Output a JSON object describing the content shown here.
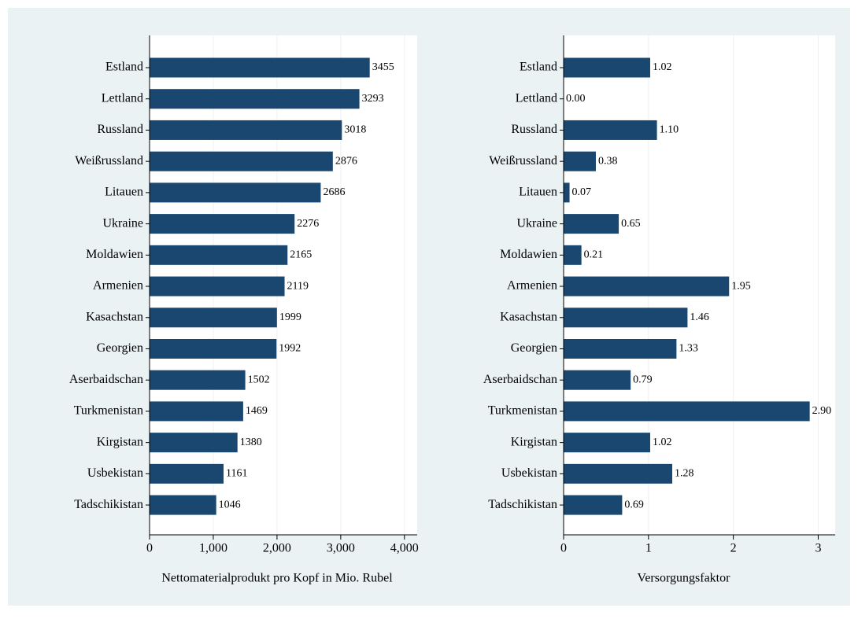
{
  "chart_data": [
    {
      "type": "hbar",
      "xlabel": "Nettomaterialprodukt pro Kopf in Mio. Rubel",
      "categories": [
        "Estland",
        "Lettland",
        "Russland",
        "Weißrussland",
        "Litauen",
        "Ukraine",
        "Moldawien",
        "Armenien",
        "Kasachstan",
        "Georgien",
        "Aserbaidschan",
        "Turkmenistan",
        "Kirgistan",
        "Usbekistan",
        "Tadschikistan"
      ],
      "values": [
        3455,
        3293,
        3018,
        2876,
        2686,
        2276,
        2165,
        2119,
        1999,
        1992,
        1502,
        1469,
        1380,
        1161,
        1046
      ],
      "color": "#1a476f",
      "xlim": [
        0,
        4200
      ],
      "xticks": [
        0,
        {
          "value": 1000,
          "label": "1,000"
        },
        {
          "value": 2000,
          "label": "2,000"
        },
        {
          "value": 3000,
          "label": "3,000"
        },
        {
          "value": 4000,
          "label": "4,000"
        }
      ],
      "grid": true
    },
    {
      "type": "hbar",
      "xlabel": "Versorgungsfaktor",
      "categories": [
        "Estland",
        "Lettland",
        "Russland",
        "Weißrussland",
        "Litauen",
        "Ukraine",
        "Moldawien",
        "Armenien",
        "Kasachstan",
        "Georgien",
        "Aserbaidschan",
        "Turkmenistan",
        "Kirgistan",
        "Usbekistan",
        "Tadschikistan"
      ],
      "values": [
        1.02,
        0,
        1.1,
        0.38,
        0.07,
        0.65,
        0.21,
        1.95,
        1.46,
        1.33,
        0.79,
        2.9,
        1.02,
        1.28,
        0.69
      ],
      "value_labels": [
        "1.02",
        "0.00",
        "1.10",
        "0.38",
        "0.07",
        "0.65",
        "0.21",
        "1.95",
        "1.46",
        "1.33",
        "0.79",
        "2.90",
        "1.02",
        "1.28",
        "0.69"
      ],
      "color": "#1a476f",
      "xlim": [
        0,
        3.2
      ],
      "xticks": [
        0,
        1,
        2,
        3
      ],
      "grid": true
    }
  ]
}
